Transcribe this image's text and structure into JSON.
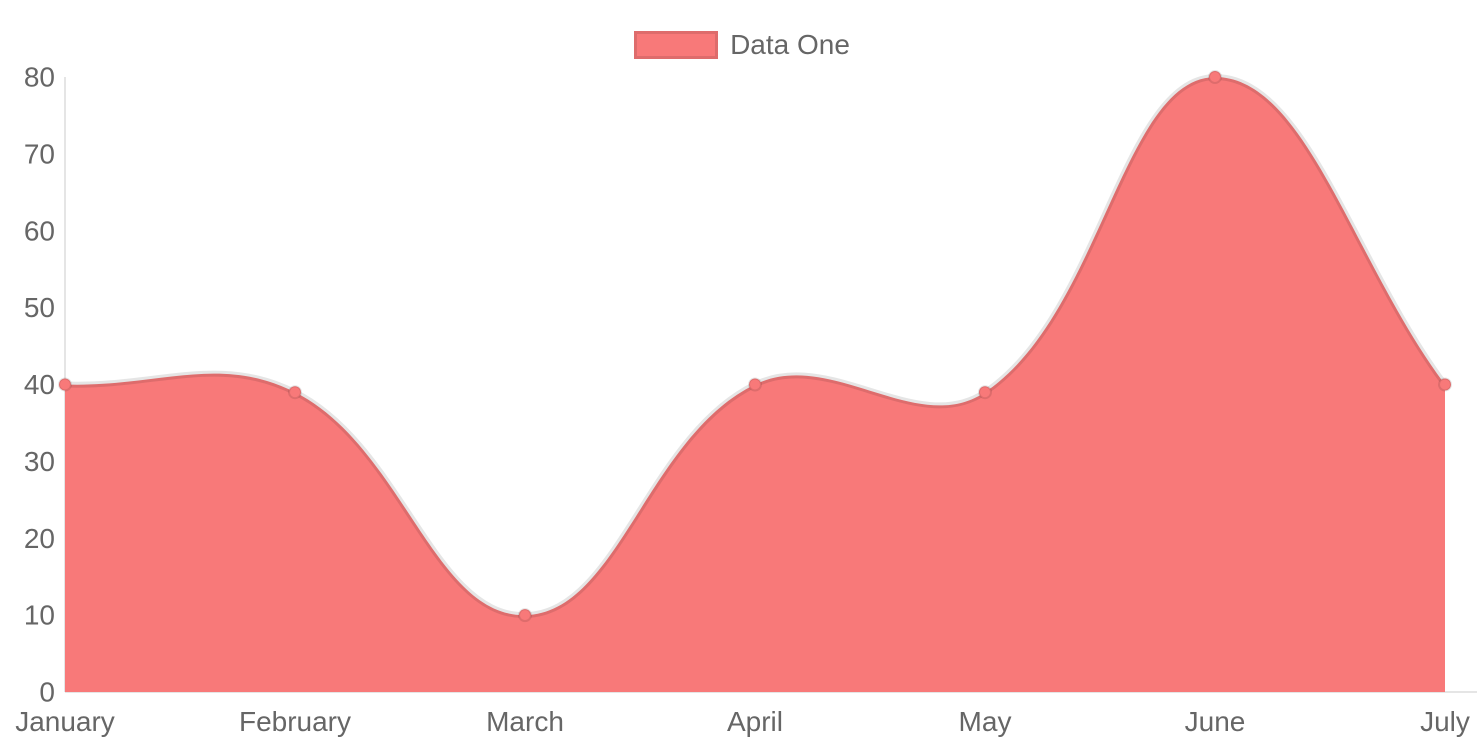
{
  "chart_data": {
    "type": "area",
    "title": "",
    "categories": [
      "January",
      "February",
      "March",
      "April",
      "May",
      "June",
      "July"
    ],
    "series": [
      {
        "name": "Data One",
        "values": [
          40,
          39,
          10,
          40,
          39,
          80,
          40
        ],
        "fill_color": "#f87979",
        "line_color": "rgba(0,0,0,0.1)",
        "point_color": "#f87979"
      }
    ],
    "xlabel": "",
    "ylabel": "",
    "ylim": [
      0,
      80
    ],
    "y_ticks": [
      0,
      10,
      20,
      30,
      40,
      50,
      60,
      70,
      80
    ],
    "grid": false,
    "legend_position": "top",
    "curve": "bezier",
    "bezier_tension": 0.4,
    "axis_color": "rgba(0,0,0,0.1)",
    "text_color": "#666666",
    "background_color": "#ffffff"
  }
}
